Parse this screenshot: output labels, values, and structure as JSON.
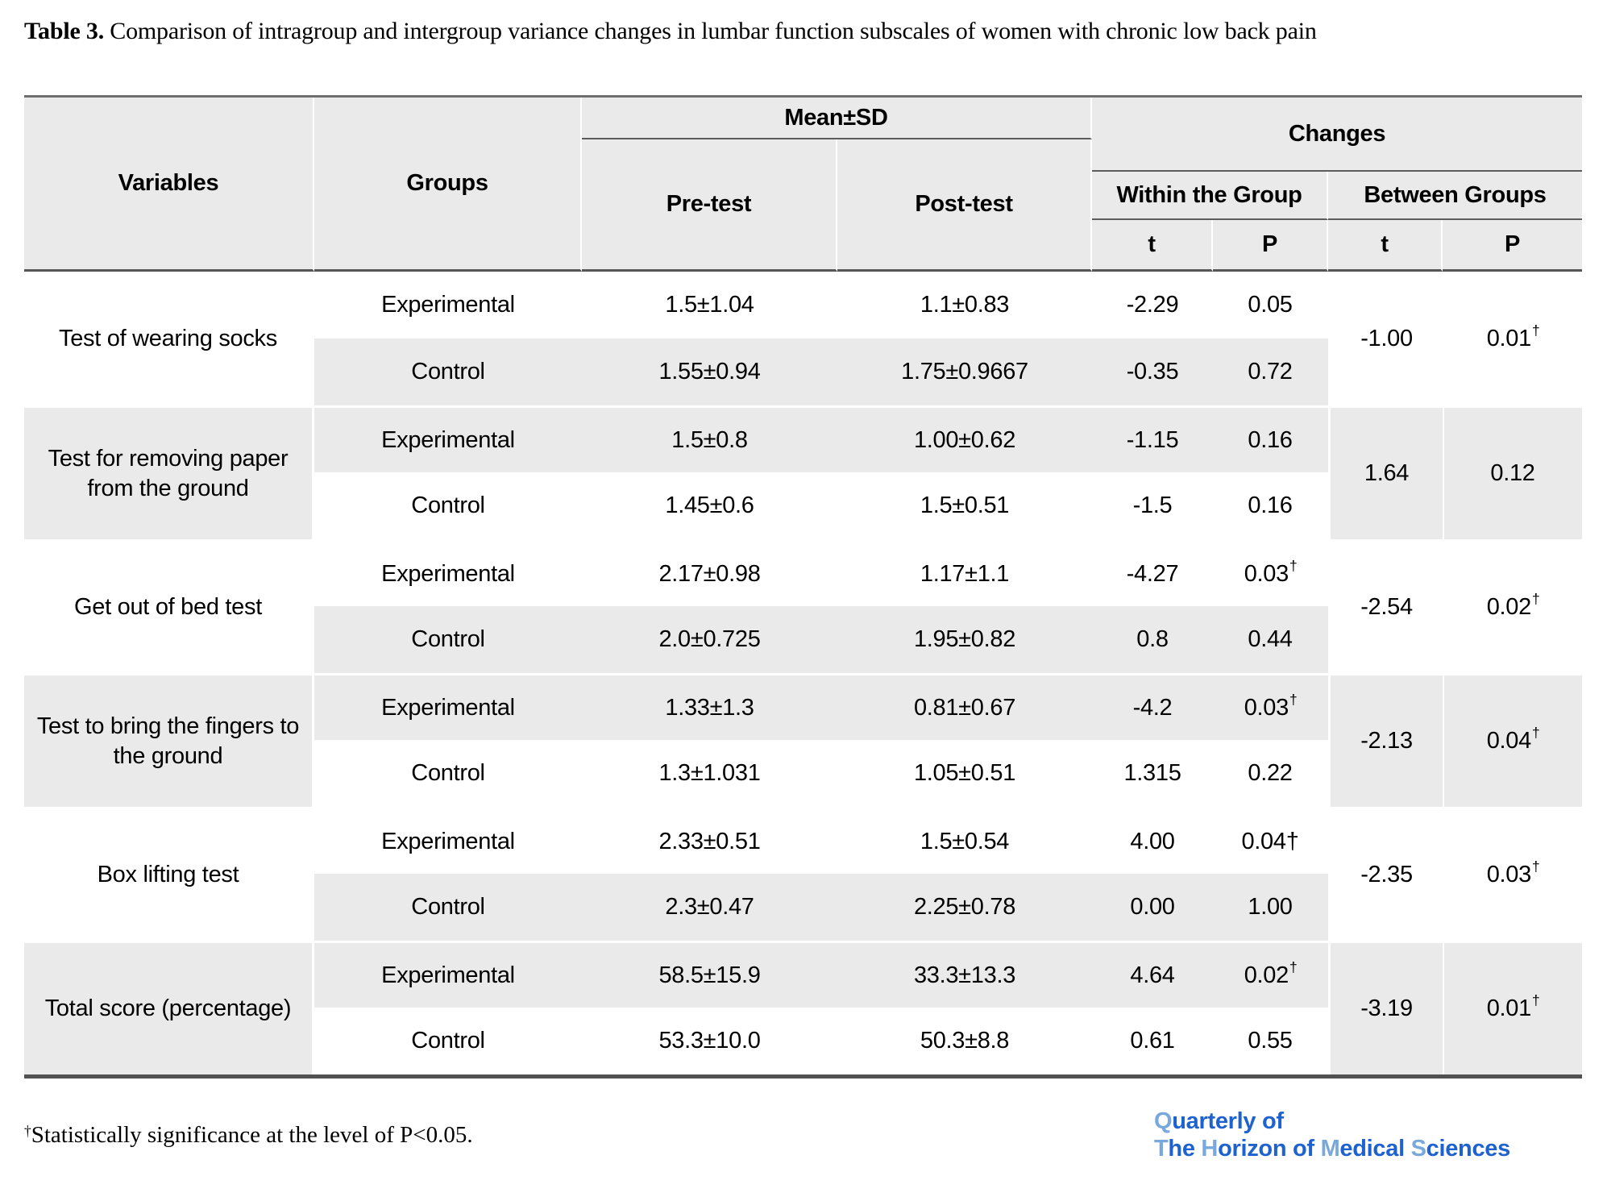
{
  "caption": {
    "label": "Table 3.",
    "text": " Comparison of intragroup and intergroup variance changes in lumbar function subscales of women with chronic low back pain"
  },
  "table": {
    "headers": {
      "variables": "Variables",
      "groups": "Groups",
      "mean_sd": "Mean±SD",
      "pre_test": "Pre-test",
      "post_test": "Post-test",
      "changes": "Changes",
      "within": "Within the Group",
      "between": "Between Groups",
      "t": "t",
      "p": "P"
    },
    "groups": [
      {
        "variable": "Test of wearing socks",
        "experimental": {
          "group": "Experimental",
          "pre": "1.5±1.04",
          "post": "1.1±0.83",
          "t": "-2.29",
          "p": "0.05",
          "p_sup": ""
        },
        "control": {
          "group": "Control",
          "pre": "1.55±0.94",
          "post": "1.75±0.9667",
          "t": "-0.35",
          "p": "0.72",
          "p_sup": ""
        },
        "between_t": "-1.00",
        "between_p": "0.01",
        "between_p_sup": "†"
      },
      {
        "variable": "Test for removing paper from the ground",
        "experimental": {
          "group": "Experimental",
          "pre": "1.5±0.8",
          "post": "1.00±0.62",
          "t": "-1.15",
          "p": "0.16",
          "p_sup": ""
        },
        "control": {
          "group": "Control",
          "pre": "1.45±0.6",
          "post": "1.5±0.51",
          "t": "-1.5",
          "p": "0.16",
          "p_sup": ""
        },
        "between_t": "1.64",
        "between_p": "0.12",
        "between_p_sup": ""
      },
      {
        "variable": "Get out of bed test",
        "experimental": {
          "group": "Experimental",
          "pre": "2.17±0.98",
          "post": "1.17±1.1",
          "t": "-4.27",
          "p": "0.03",
          "p_sup": "†"
        },
        "control": {
          "group": "Control",
          "pre": "2.0±0.725",
          "post": "1.95±0.82",
          "t": "0.8",
          "p": "0.44",
          "p_sup": ""
        },
        "between_t": "-2.54",
        "between_p": "0.02",
        "between_p_sup": "†"
      },
      {
        "variable": "Test to bring the fingers to the ground",
        "experimental": {
          "group": "Experimental",
          "pre": "1.33±1.3",
          "post": "0.81±0.67",
          "t": "-4.2",
          "p": "0.03",
          "p_sup": "†"
        },
        "control": {
          "group": "Control",
          "pre": "1.3±1.031",
          "post": "1.05±0.51",
          "t": "1.315",
          "p": "0.22",
          "p_sup": ""
        },
        "between_t": "-2.13",
        "between_p": "0.04",
        "between_p_sup": "†"
      },
      {
        "variable": "Box lifting test",
        "experimental": {
          "group": "Experimental",
          "pre": "2.33±0.51",
          "post": "1.5±0.54",
          "t": "4.00",
          "p": "0.04†",
          "p_sup": ""
        },
        "control": {
          "group": "Control",
          "pre": "2.3±0.47",
          "post": "2.25±0.78",
          "t": "0.00",
          "p": "1.00",
          "p_sup": ""
        },
        "between_t": "-2.35",
        "between_p": "0.03",
        "between_p_sup": "†"
      },
      {
        "variable": "Total score (percentage)",
        "experimental": {
          "group": "Experimental",
          "pre": "58.5±15.9",
          "post": "33.3±13.3",
          "t": "4.64",
          "p": "0.02",
          "p_sup": "†"
        },
        "control": {
          "group": "Control",
          "pre": "53.3±10.0",
          "post": "50.3±8.8",
          "t": "0.61",
          "p": "0.55",
          "p_sup": ""
        },
        "between_t": "-3.19",
        "between_p": "0.01",
        "between_p_sup": "†"
      }
    ]
  },
  "footnote": {
    "sup": "†",
    "text": "Statistically significance at the level of P<0.05."
  },
  "logo": {
    "dark_color": "#1e62d0",
    "light_color": "#79a8dc",
    "line1": [
      [
        "Q",
        "light"
      ],
      [
        "uarterly of",
        "dark"
      ]
    ],
    "line2": [
      [
        "T",
        "light"
      ],
      [
        "he ",
        "dark"
      ],
      [
        "H",
        "light"
      ],
      [
        "orizon of ",
        "dark"
      ],
      [
        "M",
        "light"
      ],
      [
        "edical ",
        "dark"
      ],
      [
        "S",
        "light"
      ],
      [
        "ciences",
        "dark"
      ]
    ]
  }
}
